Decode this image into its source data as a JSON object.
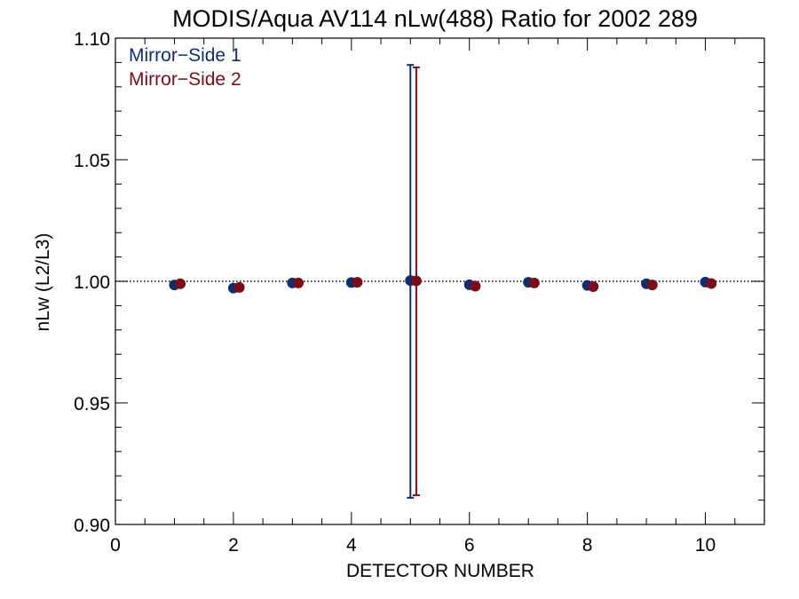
{
  "chart_data": {
    "type": "scatter",
    "title": "MODIS/Aqua AV114 nLw(488) Ratio for 2002 289",
    "xlabel": "DETECTOR NUMBER",
    "ylabel": "nLw (L2/L3)",
    "xlim": [
      0,
      11
    ],
    "ylim": [
      0.9,
      1.1
    ],
    "xticks": [
      0,
      2,
      4,
      6,
      8,
      10
    ],
    "xtick_labels": [
      "0",
      "2",
      "4",
      "6",
      "8",
      "10"
    ],
    "yticks": [
      0.9,
      0.95,
      1.0,
      1.05,
      1.1
    ],
    "ytick_labels": [
      "0.90",
      "0.95",
      "1.00",
      "1.05",
      "1.10"
    ],
    "reference_line": 1.0,
    "legend_position": "top-left",
    "series": [
      {
        "name": "Mirror−Side 1",
        "color": "#0d2f6f",
        "x": [
          1,
          2,
          3,
          4,
          5,
          6,
          7,
          8,
          9,
          10
        ],
        "y": [
          0.9985,
          0.9972,
          0.9993,
          0.9995,
          1.0003,
          0.9986,
          0.9996,
          0.9983,
          0.999,
          0.9997
        ],
        "error_bars": [
          {
            "x": 5,
            "low": 0.911,
            "high": 1.089
          }
        ]
      },
      {
        "name": "Mirror−Side 2",
        "color": "#7a0e18",
        "x": [
          1.1,
          2.1,
          3.1,
          4.1,
          5.1,
          6.1,
          7.1,
          8.1,
          9.1,
          10.1
        ],
        "y": [
          0.999,
          0.9975,
          0.9993,
          0.9996,
          1.0002,
          0.998,
          0.9993,
          0.9978,
          0.9985,
          0.9991
        ],
        "error_bars": [
          {
            "x": 5.1,
            "low": 0.912,
            "high": 1.088
          }
        ]
      }
    ]
  }
}
